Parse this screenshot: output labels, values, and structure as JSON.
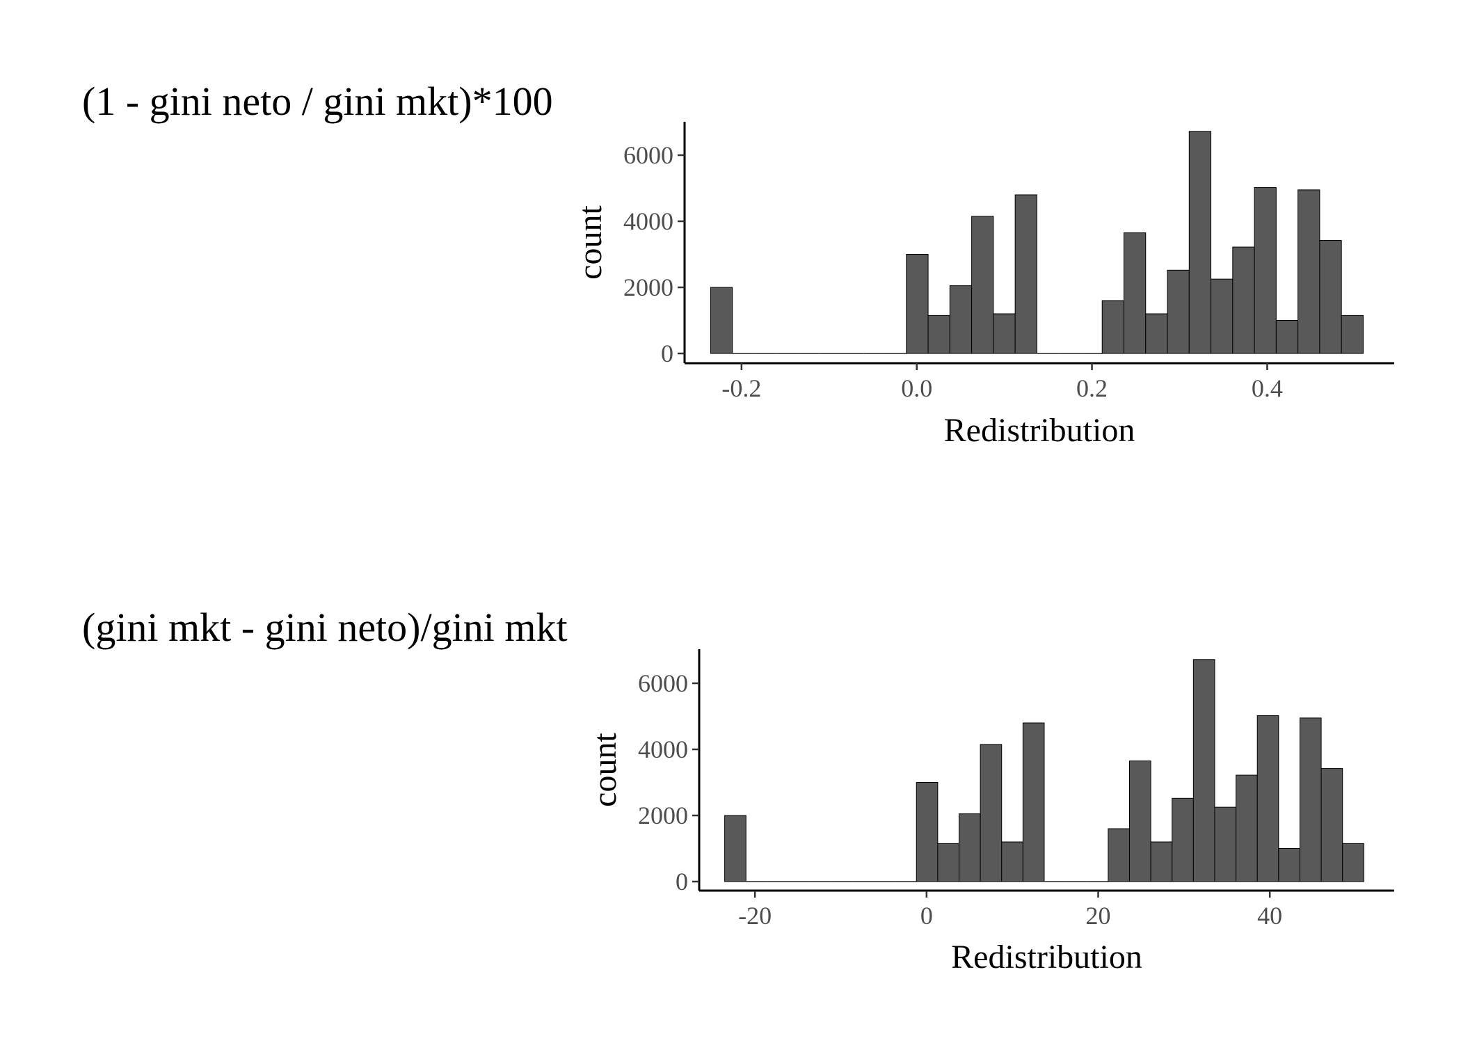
{
  "chart_data": [
    {
      "type": "bar",
      "title": "(1 - gini neto / gini mkt)*100",
      "xlabel": "Redistribution",
      "ylabel": "count",
      "x_ticks": [
        -0.2,
        0.0,
        0.2,
        0.4
      ],
      "x_tick_labels": [
        "-0.2",
        "0.0",
        "0.2",
        "0.4"
      ],
      "y_ticks": [
        0,
        2000,
        4000,
        6000
      ],
      "y_tick_labels": [
        "0",
        "2000",
        "4000",
        "6000"
      ],
      "xlim": [
        -0.265,
        0.545
      ],
      "ylim": [
        0,
        7000
      ],
      "bin_start": -0.2353,
      "bin_width": 0.02483,
      "values": [
        2000,
        0,
        0,
        0,
        0,
        0,
        0,
        0,
        0,
        3000,
        1150,
        2050,
        4150,
        1200,
        4800,
        0,
        0,
        0,
        1600,
        3650,
        1200,
        2520,
        6720,
        2250,
        3220,
        5020,
        1000,
        4950,
        3420,
        1150
      ],
      "fill_color": "#595959",
      "edge_color": "#000000",
      "grid": false,
      "legend": "none"
    },
    {
      "type": "bar",
      "title": "(gini mkt - gini neto)/gini mkt",
      "xlabel": "Redistribution",
      "ylabel": "count",
      "x_ticks": [
        -20,
        0,
        20,
        40
      ],
      "x_tick_labels": [
        "-20",
        "0",
        "20",
        "40"
      ],
      "y_ticks": [
        0,
        2000,
        4000,
        6000
      ],
      "y_tick_labels": [
        "0",
        "2000",
        "4000",
        "6000"
      ],
      "xlim": [
        -26.5,
        54.5
      ],
      "ylim": [
        0,
        7000
      ],
      "bin_start": -23.53,
      "bin_width": 2.483,
      "values": [
        2000,
        0,
        0,
        0,
        0,
        0,
        0,
        0,
        0,
        3000,
        1150,
        2050,
        4150,
        1200,
        4800,
        0,
        0,
        0,
        1600,
        3650,
        1200,
        2520,
        6720,
        2250,
        3220,
        5020,
        1000,
        4950,
        3420,
        1150
      ],
      "fill_color": "#595959",
      "edge_color": "#000000",
      "grid": false,
      "legend": "none"
    }
  ]
}
